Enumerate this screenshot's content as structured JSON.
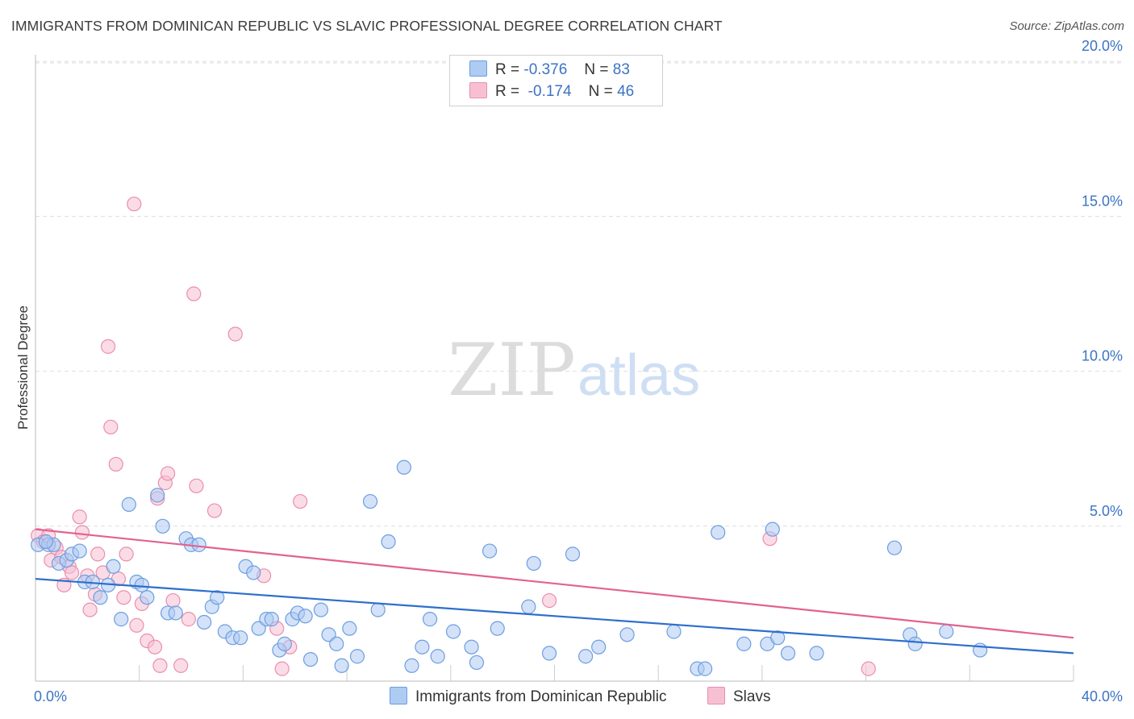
{
  "title": "IMMIGRANTS FROM DOMINICAN REPUBLIC VS SLAVIC PROFESSIONAL DEGREE CORRELATION CHART",
  "source": "Source: ZipAtlas.com",
  "watermark": {
    "zip": "ZIP",
    "atlas": "atlas"
  },
  "legend": {
    "blue": {
      "r_label": "R =",
      "r_value": "-0.376",
      "n_label": "N =",
      "n_value": "83"
    },
    "pink": {
      "r_label": "R =",
      "r_value": "-0.174",
      "n_label": "N =",
      "n_value": "46"
    }
  },
  "colors": {
    "blue_fill": "#aecbf2",
    "blue_stroke": "#6d9ee0",
    "blue_line": "#2d6fcd",
    "pink_fill": "#f7c0d2",
    "pink_stroke": "#ea8eae",
    "pink_line": "#e2628f",
    "axis_text": "#3b73c4",
    "grid": "#dedede"
  },
  "chart_data": {
    "type": "scatter",
    "title": "IMMIGRANTS FROM DOMINICAN REPUBLIC VS SLAVIC PROFESSIONAL DEGREE CORRELATION CHART",
    "xlabel": "",
    "ylabel": "Professional Degree",
    "xlim": [
      0,
      40
    ],
    "ylim": [
      0,
      20.5
    ],
    "x_tick_labels": [
      "0.0%",
      "40.0%"
    ],
    "y_ticks": [
      5,
      10,
      15,
      20
    ],
    "y_tick_labels": [
      "5.0%",
      "10.0%",
      "15.0%",
      "20.0%"
    ],
    "grid": true,
    "legend_position": "bottom",
    "series": [
      {
        "name": "Immigrants from Dominican Republic",
        "color": "#aecbf2",
        "trend": {
          "x": [
            0,
            40
          ],
          "y": [
            3.3,
            0.9
          ]
        },
        "points": [
          [
            0.1,
            4.4
          ],
          [
            0.5,
            4.4
          ],
          [
            0.7,
            4.4
          ],
          [
            0.9,
            3.8
          ],
          [
            1.2,
            3.9
          ],
          [
            1.4,
            4.1
          ],
          [
            1.7,
            4.2
          ],
          [
            1.9,
            3.2
          ],
          [
            2.2,
            3.2
          ],
          [
            2.5,
            2.7
          ],
          [
            2.8,
            3.1
          ],
          [
            3.0,
            3.7
          ],
          [
            3.3,
            2.0
          ],
          [
            3.6,
            5.7
          ],
          [
            3.9,
            3.2
          ],
          [
            4.1,
            3.1
          ],
          [
            4.3,
            2.7
          ],
          [
            4.7,
            6.0
          ],
          [
            4.9,
            5.0
          ],
          [
            5.1,
            2.2
          ],
          [
            5.4,
            2.2
          ],
          [
            5.8,
            4.6
          ],
          [
            6.0,
            4.4
          ],
          [
            6.3,
            4.4
          ],
          [
            6.5,
            1.9
          ],
          [
            6.8,
            2.4
          ],
          [
            7.0,
            2.7
          ],
          [
            7.3,
            1.6
          ],
          [
            7.6,
            1.4
          ],
          [
            7.9,
            1.4
          ],
          [
            8.1,
            3.7
          ],
          [
            8.4,
            3.5
          ],
          [
            8.6,
            1.7
          ],
          [
            8.9,
            2.0
          ],
          [
            9.1,
            2.0
          ],
          [
            9.4,
            1.0
          ],
          [
            9.6,
            1.2
          ],
          [
            9.9,
            2.0
          ],
          [
            10.1,
            2.2
          ],
          [
            10.4,
            2.1
          ],
          [
            10.6,
            0.7
          ],
          [
            11.0,
            2.3
          ],
          [
            11.3,
            1.5
          ],
          [
            11.6,
            1.2
          ],
          [
            11.8,
            0.5
          ],
          [
            12.1,
            1.7
          ],
          [
            12.4,
            0.8
          ],
          [
            12.9,
            5.8
          ],
          [
            13.2,
            2.3
          ],
          [
            13.6,
            4.5
          ],
          [
            14.2,
            6.9
          ],
          [
            14.5,
            0.5
          ],
          [
            14.9,
            1.1
          ],
          [
            15.2,
            2.0
          ],
          [
            15.5,
            0.8
          ],
          [
            16.1,
            1.6
          ],
          [
            16.8,
            1.1
          ],
          [
            17.0,
            0.6
          ],
          [
            17.5,
            4.2
          ],
          [
            17.8,
            1.7
          ],
          [
            19.0,
            2.4
          ],
          [
            19.2,
            3.8
          ],
          [
            19.8,
            0.9
          ],
          [
            20.7,
            4.1
          ],
          [
            21.2,
            0.8
          ],
          [
            21.7,
            1.1
          ],
          [
            22.8,
            1.5
          ],
          [
            24.6,
            1.6
          ],
          [
            25.5,
            0.4
          ],
          [
            25.8,
            0.4
          ],
          [
            26.3,
            4.8
          ],
          [
            27.3,
            1.2
          ],
          [
            28.2,
            1.2
          ],
          [
            28.4,
            4.9
          ],
          [
            28.6,
            1.4
          ],
          [
            29.0,
            0.9
          ],
          [
            30.1,
            0.9
          ],
          [
            33.1,
            4.3
          ],
          [
            33.7,
            1.5
          ],
          [
            33.9,
            1.2
          ],
          [
            35.1,
            1.6
          ],
          [
            36.4,
            1.0
          ],
          [
            0.4,
            4.5
          ]
        ]
      },
      {
        "name": "Slavs",
        "color": "#f7c0d2",
        "trend": {
          "x": [
            0,
            40
          ],
          "y": [
            4.9,
            1.4
          ]
        },
        "points": [
          [
            0.1,
            4.7
          ],
          [
            0.3,
            4.5
          ],
          [
            0.5,
            4.7
          ],
          [
            0.6,
            3.9
          ],
          [
            0.8,
            4.3
          ],
          [
            1.0,
            4.0
          ],
          [
            1.1,
            3.1
          ],
          [
            1.3,
            3.7
          ],
          [
            1.4,
            3.5
          ],
          [
            1.7,
            5.3
          ],
          [
            1.8,
            4.8
          ],
          [
            2.0,
            3.4
          ],
          [
            2.1,
            2.3
          ],
          [
            2.3,
            2.8
          ],
          [
            2.4,
            4.1
          ],
          [
            2.6,
            3.5
          ],
          [
            2.8,
            10.8
          ],
          [
            2.9,
            8.2
          ],
          [
            3.1,
            7.0
          ],
          [
            3.2,
            3.3
          ],
          [
            3.4,
            2.7
          ],
          [
            3.5,
            4.1
          ],
          [
            3.8,
            15.4
          ],
          [
            3.9,
            1.8
          ],
          [
            4.1,
            2.5
          ],
          [
            4.3,
            1.3
          ],
          [
            4.6,
            1.1
          ],
          [
            4.7,
            5.9
          ],
          [
            4.8,
            0.5
          ],
          [
            5.0,
            6.4
          ],
          [
            5.1,
            6.7
          ],
          [
            5.3,
            2.6
          ],
          [
            5.6,
            0.5
          ],
          [
            5.9,
            2.0
          ],
          [
            6.1,
            12.5
          ],
          [
            6.2,
            6.3
          ],
          [
            6.9,
            5.5
          ],
          [
            7.7,
            11.2
          ],
          [
            8.8,
            3.4
          ],
          [
            9.3,
            1.7
          ],
          [
            9.5,
            0.4
          ],
          [
            9.8,
            1.1
          ],
          [
            10.2,
            5.8
          ],
          [
            19.8,
            2.6
          ],
          [
            28.3,
            4.6
          ],
          [
            32.1,
            0.4
          ]
        ]
      }
    ]
  },
  "bottom_legend": {
    "blue_label": "Immigrants from Dominican Republic",
    "pink_label": "Slavs"
  }
}
